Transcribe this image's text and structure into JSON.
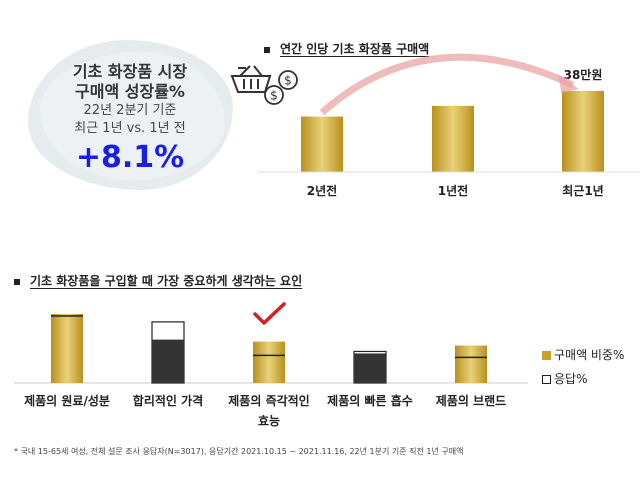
{
  "stat": {
    "line1": "기초 화장품 시장",
    "line2": "구매액 성장률%",
    "line3": "22년 2분기 기준",
    "line4": "최근 1년 vs. 1년 전",
    "value": "+8.1%"
  },
  "chart_data": [
    {
      "type": "bar",
      "title": "연간 인당 기초 화장품 구매액",
      "categories": [
        "2년전",
        "1년전",
        "최근1년"
      ],
      "values": [
        26,
        31,
        38
      ],
      "ylim": [
        0,
        40
      ],
      "data_labels": [
        "",
        "",
        "38만원"
      ],
      "bar_color": "#c9a227",
      "annotation": "arrow from 2년전 to 최근1년",
      "legend": "none",
      "grid": false
    },
    {
      "type": "bar",
      "title": "기초 화장품을 구입할 때 가장 중요하게 생각하는 요인",
      "categories": [
        "제품의 원료/성분",
        "합리적인 가격",
        "제품의 즉각적인 효능",
        "제품의 빠른 흡수",
        "제품의 브랜드"
      ],
      "series": [
        {
          "name": "구매액 비중%",
          "values": [
            35,
            22,
            21,
            15,
            19
          ],
          "color": "#c9a227"
        },
        {
          "name": "응답%",
          "values": [
            34,
            31,
            14,
            16,
            13
          ],
          "color": "#333333"
        }
      ],
      "ylim": [
        0,
        40
      ],
      "highlight": "제품의 즉각적인 효능",
      "legend": "right",
      "grid": false
    }
  ],
  "footnote": "* 국내 15-65세 여성, 전체 설문 조사 응답자(N=3017), 응답기간 2021.10.15 ~ 2021.11.16, 22년 1분기 기준 직전 1년 구매액"
}
